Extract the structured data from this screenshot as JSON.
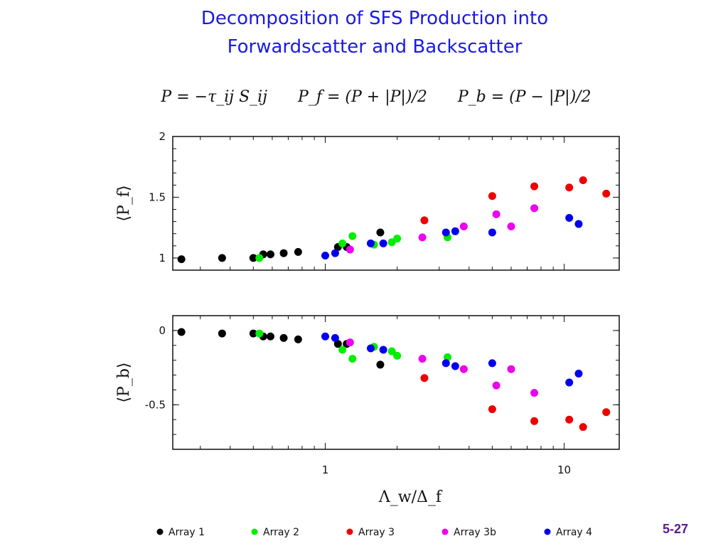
{
  "slide": {
    "title_line1": "Decomposition of SFS Production into",
    "title_line2": "Forwardscatter and Backscatter",
    "formula_p": "P = −τ_ij S_ij",
    "formula_pf": "P_f = (P + |P|)/2",
    "formula_pb": "P_b = (P − |P|)/2",
    "slide_number": "5-27"
  },
  "colors": {
    "title": "#1a1ae6",
    "slide_number": "#5b1a8c"
  },
  "chart_data": [
    {
      "type": "scatter",
      "name": "forwardscatter",
      "ylabel": "⟨P_f⟩",
      "xlabel": "",
      "xscale": "log",
      "xlim": [
        0.23,
        17
      ],
      "ylim": [
        0.9,
        2.0
      ],
      "yticks": [
        1,
        1.5,
        2
      ],
      "ytick_labels": [
        "1",
        "1.5",
        "2"
      ],
      "series": [
        {
          "name": "Array 1",
          "color": "#000000",
          "points": [
            [
              0.25,
              0.99
            ],
            [
              0.37,
              1.0
            ],
            [
              0.5,
              1.0
            ],
            [
              0.55,
              1.03
            ],
            [
              0.59,
              1.03
            ],
            [
              0.67,
              1.04
            ],
            [
              0.77,
              1.05
            ],
            [
              1.13,
              1.09
            ],
            [
              1.23,
              1.09
            ],
            [
              1.7,
              1.21
            ]
          ]
        },
        {
          "name": "Array 2",
          "color": "#00ee00",
          "points": [
            [
              0.53,
              1.0
            ],
            [
              1.18,
              1.12
            ],
            [
              1.3,
              1.18
            ],
            [
              1.6,
              1.11
            ],
            [
              1.9,
              1.13
            ],
            [
              2.0,
              1.16
            ],
            [
              3.25,
              1.17
            ]
          ]
        },
        {
          "name": "Array 3",
          "color": "#ee0000",
          "points": [
            [
              2.6,
              1.31
            ],
            [
              5.0,
              1.51
            ],
            [
              7.5,
              1.59
            ],
            [
              10.5,
              1.58
            ],
            [
              12.0,
              1.64
            ],
            [
              15.0,
              1.53
            ]
          ]
        },
        {
          "name": "Array 3b",
          "color": "#ee00ee",
          "points": [
            [
              1.27,
              1.07
            ],
            [
              2.55,
              1.17
            ],
            [
              3.8,
              1.26
            ],
            [
              5.2,
              1.36
            ],
            [
              6.0,
              1.26
            ],
            [
              7.5,
              1.41
            ]
          ]
        },
        {
          "name": "Array 4",
          "color": "#0000ee",
          "points": [
            [
              1.0,
              1.02
            ],
            [
              1.1,
              1.04
            ],
            [
              1.55,
              1.12
            ],
            [
              1.75,
              1.12
            ],
            [
              3.2,
              1.21
            ],
            [
              3.5,
              1.22
            ],
            [
              5.0,
              1.21
            ],
            [
              10.5,
              1.33
            ],
            [
              11.5,
              1.28
            ]
          ]
        }
      ]
    },
    {
      "type": "scatter",
      "name": "backscatter",
      "ylabel": "⟨P_b⟩",
      "xlabel": "Λ_w/Δ_f",
      "xscale": "log",
      "xlim": [
        0.23,
        17
      ],
      "ylim": [
        -0.8,
        0.1
      ],
      "yticks": [
        0,
        -0.5
      ],
      "ytick_labels": [
        "0",
        "-0.5"
      ],
      "xticks": [
        1,
        10
      ],
      "xtick_labels": [
        "1",
        "10"
      ],
      "series": [
        {
          "name": "Array 1",
          "color": "#000000",
          "points": [
            [
              0.25,
              -0.01
            ],
            [
              0.37,
              -0.02
            ],
            [
              0.5,
              -0.02
            ],
            [
              0.55,
              -0.04
            ],
            [
              0.59,
              -0.04
            ],
            [
              0.67,
              -0.05
            ],
            [
              0.77,
              -0.06
            ],
            [
              1.13,
              -0.09
            ],
            [
              1.23,
              -0.09
            ],
            [
              1.7,
              -0.23
            ]
          ]
        },
        {
          "name": "Array 2",
          "color": "#00ee00",
          "points": [
            [
              0.53,
              -0.02
            ],
            [
              1.18,
              -0.13
            ],
            [
              1.3,
              -0.19
            ],
            [
              1.6,
              -0.11
            ],
            [
              1.9,
              -0.14
            ],
            [
              2.0,
              -0.17
            ],
            [
              3.25,
              -0.18
            ]
          ]
        },
        {
          "name": "Array 3",
          "color": "#ee0000",
          "points": [
            [
              2.6,
              -0.32
            ],
            [
              5.0,
              -0.53
            ],
            [
              7.5,
              -0.61
            ],
            [
              10.5,
              -0.6
            ],
            [
              12.0,
              -0.65
            ],
            [
              15.0,
              -0.55
            ]
          ]
        },
        {
          "name": "Array 3b",
          "color": "#ee00ee",
          "points": [
            [
              1.27,
              -0.08
            ],
            [
              2.55,
              -0.19
            ],
            [
              3.8,
              -0.26
            ],
            [
              5.2,
              -0.37
            ],
            [
              6.0,
              -0.26
            ],
            [
              7.5,
              -0.42
            ]
          ]
        },
        {
          "name": "Array 4",
          "color": "#0000ee",
          "points": [
            [
              1.0,
              -0.04
            ],
            [
              1.1,
              -0.05
            ],
            [
              1.55,
              -0.12
            ],
            [
              1.75,
              -0.13
            ],
            [
              3.2,
              -0.22
            ],
            [
              3.5,
              -0.24
            ],
            [
              5.0,
              -0.22
            ],
            [
              10.5,
              -0.35
            ],
            [
              11.5,
              -0.29
            ]
          ]
        }
      ]
    }
  ],
  "legend": {
    "placement": "bottom",
    "items": [
      {
        "label": "Array 1",
        "color": "#000000"
      },
      {
        "label": "Array 2",
        "color": "#00ee00"
      },
      {
        "label": "Array 3",
        "color": "#ee0000"
      },
      {
        "label": "Array 3b",
        "color": "#ee00ee"
      },
      {
        "label": "Array 4",
        "color": "#0000ee"
      }
    ]
  }
}
